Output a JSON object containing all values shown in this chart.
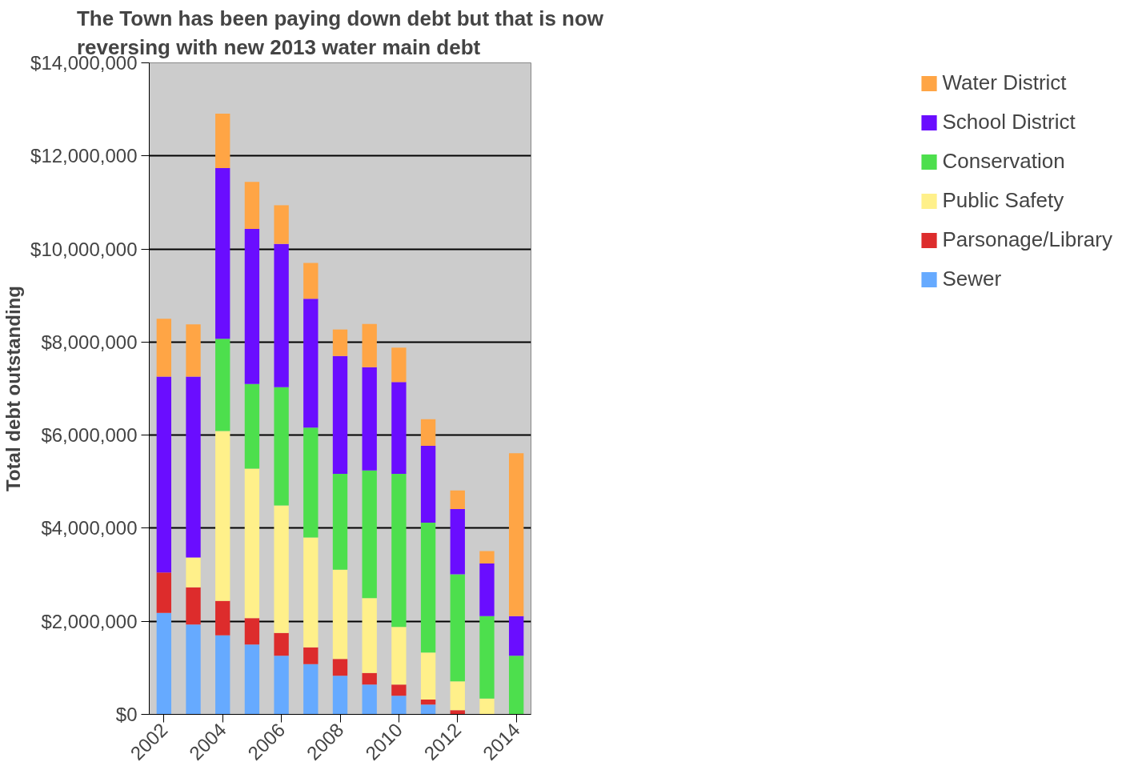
{
  "chart_data": {
    "type": "bar",
    "stacked": true,
    "title": "The Town has been paying down debt but that is now reversing with new 2013 water main debt",
    "ylabel": "Total debt outstanding",
    "categories": [
      "2002",
      null,
      "2004",
      null,
      "2006",
      null,
      "2008",
      null,
      "2010",
      null,
      "2012",
      null,
      "2014"
    ],
    "series": [
      {
        "name": "Sewer",
        "color": "#66aaff",
        "values": [
          2180000,
          1930000,
          1700000,
          1500000,
          1260000,
          1080000,
          830000,
          640000,
          400000,
          210000,
          0,
          0,
          0
        ]
      },
      {
        "name": "Parsonage/Library",
        "color": "#dd2c2c",
        "values": [
          870000,
          800000,
          740000,
          570000,
          490000,
          360000,
          360000,
          250000,
          240000,
          110000,
          90000,
          0,
          0
        ]
      },
      {
        "name": "Public Safety",
        "color": "#fff08a",
        "values": [
          0,
          640000,
          3650000,
          3210000,
          2740000,
          2360000,
          1920000,
          1610000,
          1240000,
          1010000,
          620000,
          340000,
          0
        ]
      },
      {
        "name": "Conservation",
        "color": "#4ddf4d",
        "values": [
          0,
          0,
          1980000,
          1820000,
          2540000,
          2360000,
          2060000,
          2740000,
          3290000,
          2790000,
          2300000,
          1770000,
          1260000
        ]
      },
      {
        "name": "School District",
        "color": "#6a0dff",
        "values": [
          4210000,
          3890000,
          3670000,
          3330000,
          3080000,
          2770000,
          2530000,
          2220000,
          1970000,
          1650000,
          1400000,
          1130000,
          850000
        ]
      },
      {
        "name": "Water District",
        "color": "#ffa545",
        "values": [
          1240000,
          1120000,
          1170000,
          1010000,
          830000,
          770000,
          570000,
          930000,
          740000,
          570000,
          400000,
          270000,
          3500000
        ]
      }
    ],
    "ylim": [
      0,
      14000000
    ],
    "yticks": [
      {
        "value": 0,
        "label": "$0"
      },
      {
        "value": 2000000,
        "label": "$2,000,000"
      },
      {
        "value": 4000000,
        "label": "$4,000,000"
      },
      {
        "value": 6000000,
        "label": "$6,000,000"
      },
      {
        "value": 8000000,
        "label": "$8,000,000"
      },
      {
        "value": 10000000,
        "label": "$10,000,000"
      },
      {
        "value": 12000000,
        "label": "$12,000,000"
      },
      {
        "value": 14000000,
        "label": "$14,000,000"
      }
    ],
    "grid": "y",
    "legend": "right"
  }
}
